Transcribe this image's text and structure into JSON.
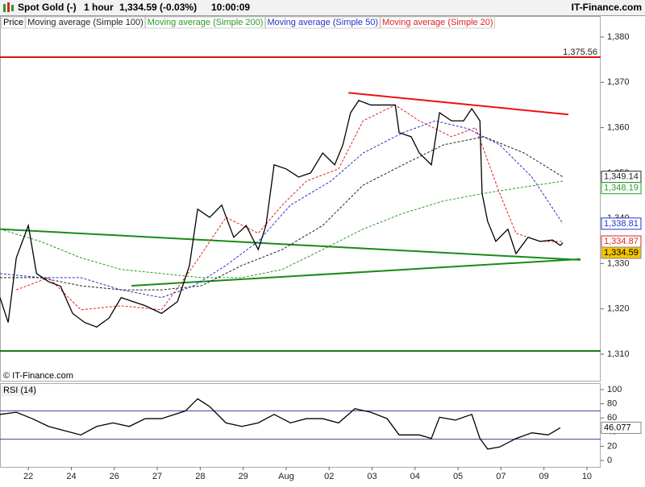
{
  "header": {
    "instrument": "Spot Gold (-)",
    "interval": "1 hour",
    "quote": "1,334.59 (-0.03%)",
    "time": "10:00:09",
    "brand": "IT-Finance.com"
  },
  "source": "© IT-Finance.com",
  "chart_data": [
    {
      "type": "line",
      "xlim": [
        -0.66,
        13.32
      ],
      "ylim": [
        1304.67,
        1381.78
      ],
      "yticks": [
        {
          "value": 1310,
          "label": "1,310"
        },
        {
          "value": 1320,
          "label": "1,320"
        },
        {
          "value": 1330,
          "label": "1,330"
        },
        {
          "value": 1340,
          "label": "1,340"
        },
        {
          "value": 1350,
          "label": "1,350"
        },
        {
          "value": 1360,
          "label": "1,360"
        },
        {
          "value": 1370,
          "label": "1,370"
        },
        {
          "value": 1380,
          "label": "1,380"
        }
      ],
      "hlines": [
        {
          "value": 1375.56,
          "color": "#dd1111",
          "label": "1,375.56"
        },
        {
          "value": 1310.7,
          "color": "#1a7a1a"
        }
      ],
      "trendlines": [
        {
          "color": "#1a8a1a",
          "x": [
            -0.66,
            12.85
          ],
          "values": [
            1337.6,
            1330.8
          ]
        },
        {
          "color": "#1a8a1a",
          "x": [
            2.4,
            12.85
          ],
          "values": [
            1325.1,
            1330.98
          ]
        },
        {
          "color": "#ee1111",
          "x": [
            7.45,
            12.57
          ],
          "values": [
            1367.7,
            1362.9
          ]
        }
      ],
      "series": [
        {
          "name": "Price",
          "color": "#000000",
          "dash": false,
          "label_fill": "#f5c400",
          "last_label": "1,334.59",
          "x": [
            -0.66,
            -0.47,
            -0.28,
            0,
            0.19,
            0.47,
            0.75,
            1.03,
            1.31,
            1.59,
            1.88,
            2.16,
            2.44,
            2.72,
            3.1,
            3.47,
            3.75,
            3.94,
            4.22,
            4.5,
            4.78,
            5.07,
            5.35,
            5.53,
            5.72,
            6.0,
            6.29,
            6.57,
            6.85,
            7.13,
            7.32,
            7.5,
            7.69,
            7.97,
            8.26,
            8.54,
            8.63,
            8.91,
            9.1,
            9.38,
            9.57,
            9.85,
            10.13,
            10.32,
            10.51,
            10.56,
            10.69,
            10.88,
            11.16,
            11.35,
            11.63,
            11.91,
            12.2,
            12.38,
            12.44
          ],
          "values": [
            1322.5,
            1317,
            1331.3,
            1338.4,
            1327.8,
            1326,
            1325,
            1319,
            1317,
            1316,
            1318,
            1322.5,
            1321.6,
            1320.7,
            1319,
            1321.6,
            1329.6,
            1342,
            1340.2,
            1342.9,
            1335.8,
            1338.4,
            1333.1,
            1338.4,
            1351.8,
            1350.9,
            1349.1,
            1350,
            1354.4,
            1351.8,
            1356.2,
            1363.3,
            1366,
            1365,
            1365,
            1365,
            1358.9,
            1358,
            1354.4,
            1351.8,
            1363.3,
            1361.5,
            1361.5,
            1364.2,
            1361.5,
            1345.5,
            1339.3,
            1334.9,
            1337.6,
            1332.2,
            1335.8,
            1334.9,
            1335.2,
            1334,
            1334.59
          ]
        },
        {
          "name": "Moving average (Simple 100)",
          "color": "#222222",
          "dash": true,
          "last_label": "1,349.14",
          "x": [
            -0.66,
            0.28,
            1.22,
            2.16,
            3.1,
            4.03,
            4.97,
            5.91,
            6.85,
            7.79,
            8.72,
            9.66,
            10.6,
            11.54,
            12.44
          ],
          "values": [
            1326.9,
            1326.9,
            1325.1,
            1324.2,
            1324.2,
            1325.1,
            1329.6,
            1333.1,
            1338.4,
            1347.3,
            1351.8,
            1356.2,
            1358,
            1354.4,
            1349.14
          ]
        },
        {
          "name": "Moving average (Simple 200)",
          "color": "#2a9a2a",
          "dash": true,
          "last_label": "1,348.19",
          "x": [
            -0.66,
            0.28,
            1.22,
            2.16,
            3.1,
            4.03,
            4.97,
            5.91,
            6.85,
            7.79,
            8.72,
            9.66,
            10.6,
            11.54,
            12.44
          ],
          "values": [
            1337.6,
            1334.9,
            1331.3,
            1328.7,
            1327.8,
            1326.9,
            1326.9,
            1328.7,
            1333.1,
            1337.6,
            1341.1,
            1343.8,
            1345.5,
            1346.9,
            1348.19
          ]
        },
        {
          "name": "Moving average (Simple 50)",
          "color": "#2233cc",
          "dash": true,
          "last_label": "1,338.81",
          "x": [
            -0.66,
            0.28,
            1.22,
            2.16,
            3.1,
            3.85,
            4.6,
            5.35,
            6.1,
            7.04,
            7.79,
            8.72,
            9.47,
            10.22,
            10.97,
            11.72,
            12.44
          ],
          "values": [
            1327.8,
            1326.9,
            1326.9,
            1324.2,
            1322.5,
            1325.1,
            1329.6,
            1334.9,
            1342.9,
            1348.2,
            1354.4,
            1358.9,
            1361.5,
            1359.8,
            1356.2,
            1349.1,
            1338.81
          ]
        },
        {
          "name": "Moving average (Simple 20)",
          "color": "#dd2222",
          "dash": true,
          "last_label": "1,334.87",
          "x": [
            -0.28,
            0.47,
            1.22,
            2.16,
            3.1,
            3.85,
            4.6,
            5.35,
            5.91,
            6.47,
            7.22,
            7.79,
            8.54,
            9.1,
            9.85,
            10.41,
            10.97,
            11.35,
            11.91,
            12.44
          ],
          "values": [
            1324.2,
            1326.9,
            1319.8,
            1320.7,
            1319.8,
            1329.6,
            1340.2,
            1336.7,
            1342.9,
            1348.2,
            1350.9,
            1361.5,
            1365,
            1361.5,
            1358,
            1360,
            1345.5,
            1336.7,
            1334.9,
            1334.87
          ]
        }
      ]
    },
    {
      "type": "line",
      "xlim": [
        -0.66,
        13.32
      ],
      "ylim": [
        -9.09,
        107.95
      ],
      "yticks": [
        0,
        20,
        40,
        60,
        80,
        100
      ],
      "levels": [
        70,
        30
      ],
      "level_color": "#334499",
      "xticks": [
        {
          "value": 0,
          "label": "22"
        },
        {
          "value": 1,
          "label": "24"
        },
        {
          "value": 2,
          "label": "26"
        },
        {
          "value": 3,
          "label": "27"
        },
        {
          "value": 4,
          "label": "28"
        },
        {
          "value": 5,
          "label": "29"
        },
        {
          "value": 6,
          "label": "Aug"
        },
        {
          "value": 7,
          "label": "02"
        },
        {
          "value": 8,
          "label": "03"
        },
        {
          "value": 9,
          "label": "04"
        },
        {
          "value": 10,
          "label": "05"
        },
        {
          "value": 11,
          "label": "07"
        },
        {
          "value": 12,
          "label": "09"
        },
        {
          "value": 13,
          "label": "10"
        }
      ],
      "series": [
        {
          "name": "RSI (14)",
          "color": "#000000",
          "dash": false,
          "last_label": "46.077",
          "x": [
            -0.66,
            -0.28,
            0.09,
            0.47,
            0.84,
            1.22,
            1.59,
            1.97,
            2.35,
            2.72,
            3.1,
            3.66,
            3.94,
            4.22,
            4.6,
            4.97,
            5.35,
            5.72,
            6.1,
            6.47,
            6.85,
            7.22,
            7.6,
            7.97,
            8.35,
            8.63,
            9.1,
            9.38,
            9.57,
            9.94,
            10.32,
            10.51,
            10.69,
            10.97,
            11.35,
            11.72,
            12.1,
            12.38
          ],
          "values": [
            65,
            68,
            59,
            48,
            42,
            36,
            48,
            53,
            48,
            59,
            59,
            70,
            87,
            76,
            53,
            48,
            53,
            65,
            53,
            59,
            59,
            53,
            73,
            68,
            59,
            36,
            36,
            31,
            61,
            57,
            65,
            31,
            16,
            19,
            31,
            39,
            36,
            46.077
          ]
        }
      ]
    }
  ]
}
